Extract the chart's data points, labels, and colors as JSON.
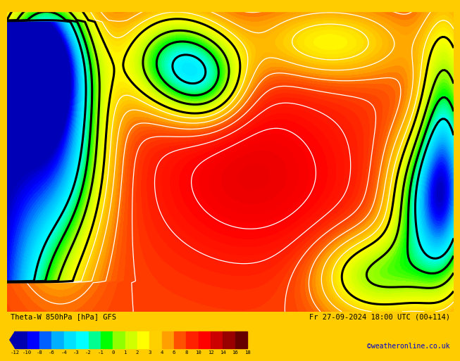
{
  "title_left": "Theta-W 850hPa [hPa] GFS",
  "title_right": "Fr 27-09-2024 18:00 UTC (00+114)",
  "credit": "©weatheronline.co.uk",
  "colorbar_levels": [
    -12,
    -10,
    -8,
    -6,
    -4,
    -3,
    -2,
    -1,
    0,
    1,
    2,
    3,
    4,
    6,
    8,
    10,
    12,
    14,
    16,
    18
  ],
  "colorbar_colors": [
    "#0000b0",
    "#0000ff",
    "#0060ff",
    "#00b0ff",
    "#00e0ff",
    "#00ffff",
    "#00ff90",
    "#00ff00",
    "#90ff00",
    "#d0ff00",
    "#ffff00",
    "#ffd000",
    "#ffa000",
    "#ff5000",
    "#ff2000",
    "#ff0000",
    "#cc0000",
    "#990000",
    "#660000"
  ],
  "border_color": "#ffcc00",
  "fig_width": 6.34,
  "fig_height": 4.9,
  "credit_color": "#0000cc",
  "bottom_bg": "#ffffff",
  "map_main_color": "#dd0000",
  "map_dark_color": "#990000",
  "map_darker_color": "#cc0000"
}
